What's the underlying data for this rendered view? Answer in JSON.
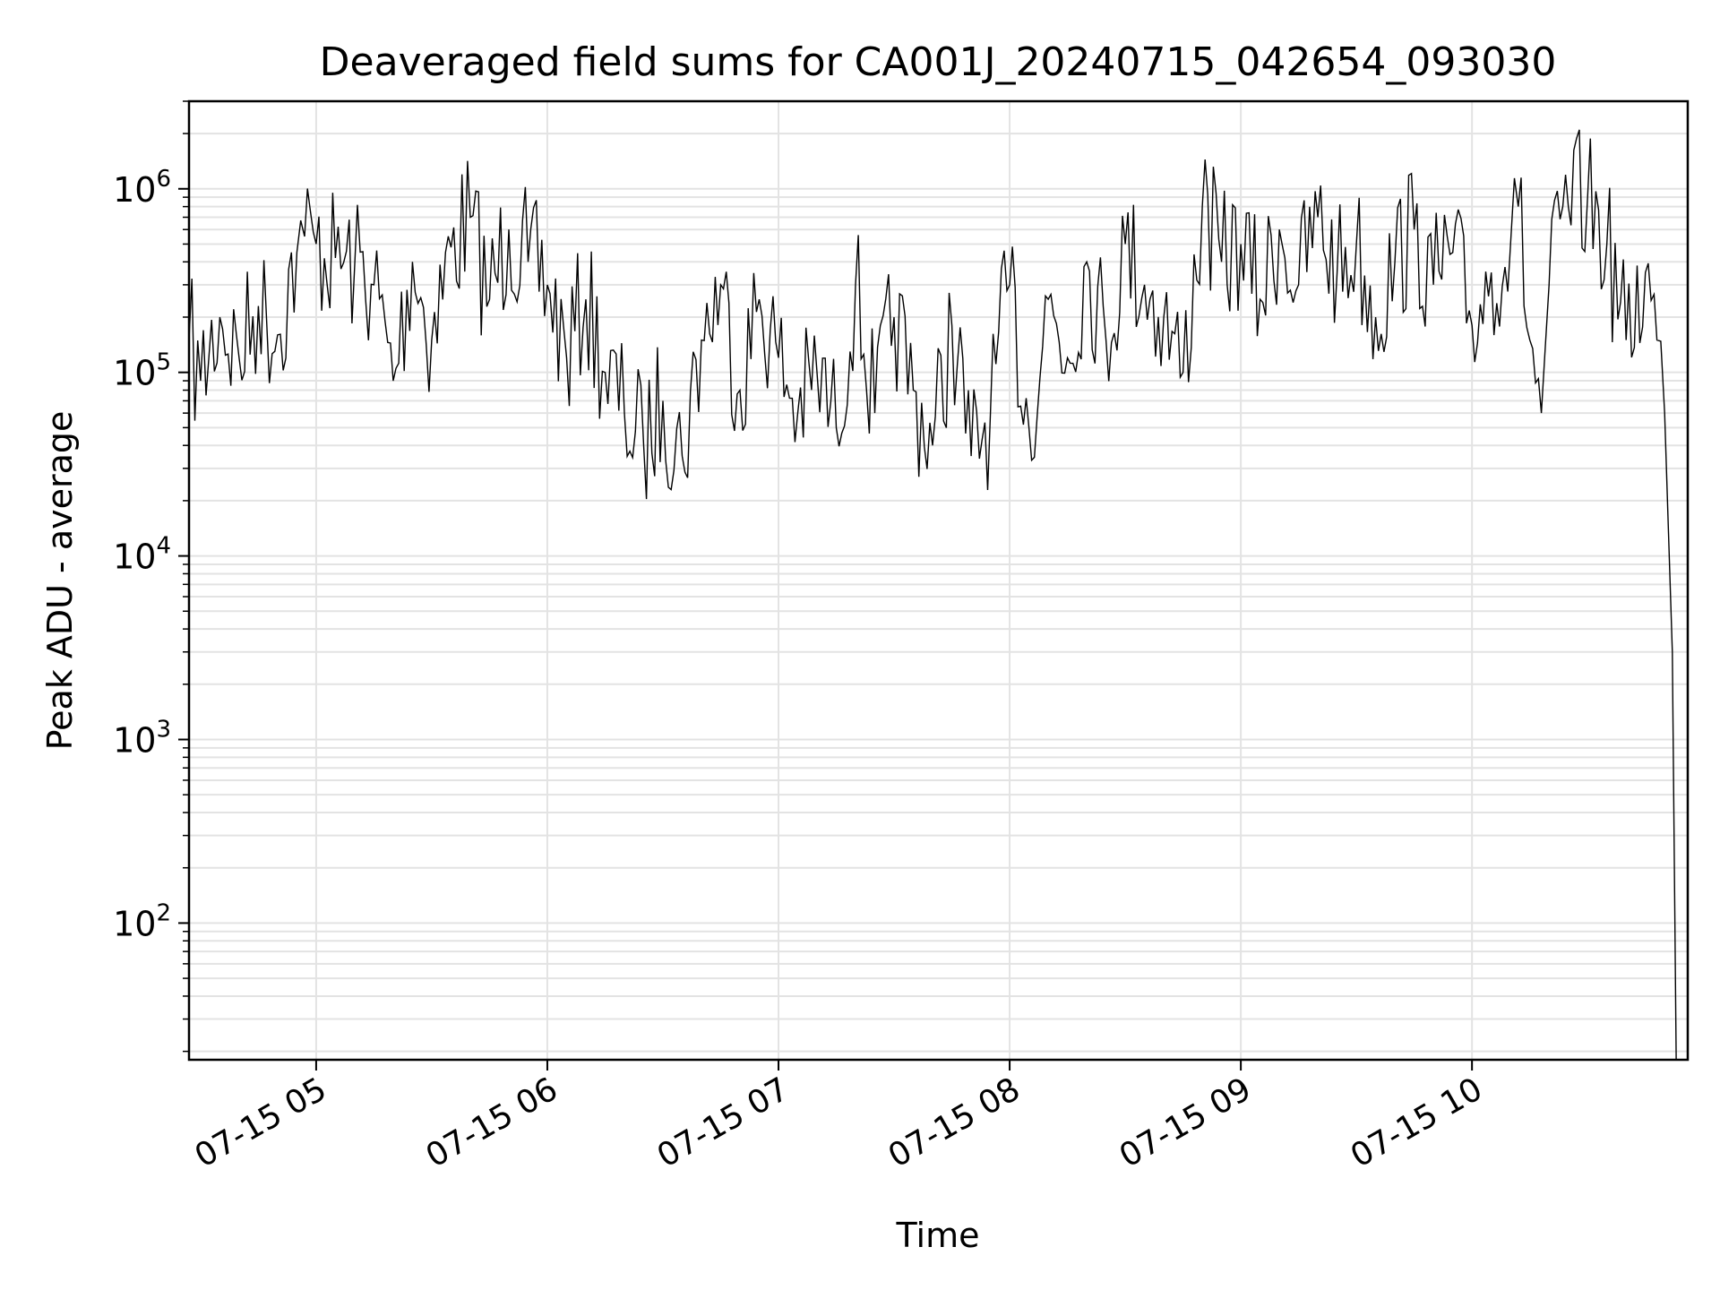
{
  "chart_data": {
    "type": "line",
    "title": "Deaveraged field sums for CA001J_20240715_042654_093030",
    "xlabel": "Time",
    "ylabel": "Peak ADU - average",
    "yscale": "log",
    "ylim": [
      18,
      3000000
    ],
    "xlim": [
      "2024-07-15T04:27:00",
      "2024-07-15T10:56:00"
    ],
    "x_ticks": [
      {
        "value": "2024-07-15T05:00:00",
        "label": "07-15 05"
      },
      {
        "value": "2024-07-15T06:00:00",
        "label": "07-15 06"
      },
      {
        "value": "2024-07-15T07:00:00",
        "label": "07-15 07"
      },
      {
        "value": "2024-07-15T08:00:00",
        "label": "07-15 08"
      },
      {
        "value": "2024-07-15T09:00:00",
        "label": "07-15 09"
      },
      {
        "value": "2024-07-15T10:00:00",
        "label": "07-15 10"
      }
    ],
    "y_ticks": [
      {
        "value": 100,
        "base": "10",
        "exp": "2"
      },
      {
        "value": 1000,
        "base": "10",
        "exp": "3"
      },
      {
        "value": 10000,
        "base": "10",
        "exp": "4"
      },
      {
        "value": 100000,
        "base": "10",
        "exp": "5"
      },
      {
        "value": 1000000,
        "base": "10",
        "exp": "6"
      }
    ],
    "grid": true,
    "line_color": "#000000",
    "grid_color": "#e3e3e3",
    "series": [
      {
        "x": [
          "2024-07-15T04:27:00",
          "2024-07-15T04:30:00",
          "2024-07-15T04:35:00",
          "2024-07-15T04:40:00",
          "2024-07-15T04:45:00",
          "2024-07-15T04:50:00",
          "2024-07-15T04:55:00",
          "2024-07-15T04:57:00",
          "2024-07-15T05:00:00",
          "2024-07-15T05:05:00",
          "2024-07-15T05:10:00",
          "2024-07-15T05:15:00",
          "2024-07-15T05:20:00",
          "2024-07-15T05:25:00",
          "2024-07-15T05:30:00",
          "2024-07-15T05:35:00",
          "2024-07-15T05:40:00",
          "2024-07-15T05:45:00",
          "2024-07-15T05:50:00",
          "2024-07-15T05:55:00",
          "2024-07-15T06:00:00",
          "2024-07-15T06:05:00",
          "2024-07-15T06:10:00",
          "2024-07-15T06:15:00",
          "2024-07-15T06:20:00",
          "2024-07-15T06:25:00",
          "2024-07-15T06:30:00",
          "2024-07-15T06:35:00",
          "2024-07-15T06:40:00",
          "2024-07-15T06:45:00",
          "2024-07-15T06:50:00",
          "2024-07-15T06:55:00",
          "2024-07-15T07:00:00",
          "2024-07-15T07:05:00",
          "2024-07-15T07:10:00",
          "2024-07-15T07:15:00",
          "2024-07-15T07:20:00",
          "2024-07-15T07:25:00",
          "2024-07-15T07:30:00",
          "2024-07-15T07:35:00",
          "2024-07-15T07:40:00",
          "2024-07-15T07:45:00",
          "2024-07-15T07:50:00",
          "2024-07-15T07:55:00",
          "2024-07-15T08:00:00",
          "2024-07-15T08:05:00",
          "2024-07-15T08:10:00",
          "2024-07-15T08:15:00",
          "2024-07-15T08:20:00",
          "2024-07-15T08:25:00",
          "2024-07-15T08:30:00",
          "2024-07-15T08:35:00",
          "2024-07-15T08:40:00",
          "2024-07-15T08:45:00",
          "2024-07-15T08:50:00",
          "2024-07-15T08:55:00",
          "2024-07-15T09:00:00",
          "2024-07-15T09:05:00",
          "2024-07-15T09:10:00",
          "2024-07-15T09:15:00",
          "2024-07-15T09:20:00",
          "2024-07-15T09:25:00",
          "2024-07-15T09:30:00",
          "2024-07-15T09:35:00",
          "2024-07-15T09:40:00",
          "2024-07-15T09:45:00",
          "2024-07-15T09:50:00",
          "2024-07-15T09:55:00",
          "2024-07-15T10:00:00",
          "2024-07-15T10:05:00",
          "2024-07-15T10:10:00",
          "2024-07-15T10:12:00",
          "2024-07-15T10:15:00",
          "2024-07-15T10:18:00",
          "2024-07-15T10:20:00",
          "2024-07-15T10:25:00",
          "2024-07-15T10:30:00",
          "2024-07-15T10:35:00",
          "2024-07-15T10:40:00",
          "2024-07-15T10:45:00",
          "2024-07-15T10:48:00",
          "2024-07-15T10:50:00",
          "2024-07-15T10:52:00",
          "2024-07-15T10:53:00"
        ],
        "y": [
          150000,
          90000,
          200000,
          120000,
          230000,
          160000,
          450000,
          550000,
          500000,
          420000,
          380000,
          300000,
          90000,
          400000,
          150000,
          480000,
          700000,
          250000,
          600000,
          400000,
          300000,
          120000,
          250000,
          100000,
          60000,
          40000,
          70000,
          35000,
          150000,
          300000,
          80000,
          250000,
          120000,
          60000,
          100000,
          50000,
          300000,
          60000,
          200000,
          80000,
          40000,
          180000,
          35000,
          60000,
          300000,
          50000,
          250000,
          120000,
          400000,
          150000,
          500000,
          300000,
          200000,
          100000,
          800000,
          400000,
          500000,
          250000,
          600000,
          300000,
          700000,
          350000,
          500000,
          200000,
          400000,
          600000,
          300000,
          450000,
          180000,
          350000,
          500000,
          800000,
          150000,
          60000,
          300000,
          800000,
          900000,
          500000,
          150000,
          350000,
          150000,
          60000,
          3000,
          18
        ]
      }
    ]
  }
}
